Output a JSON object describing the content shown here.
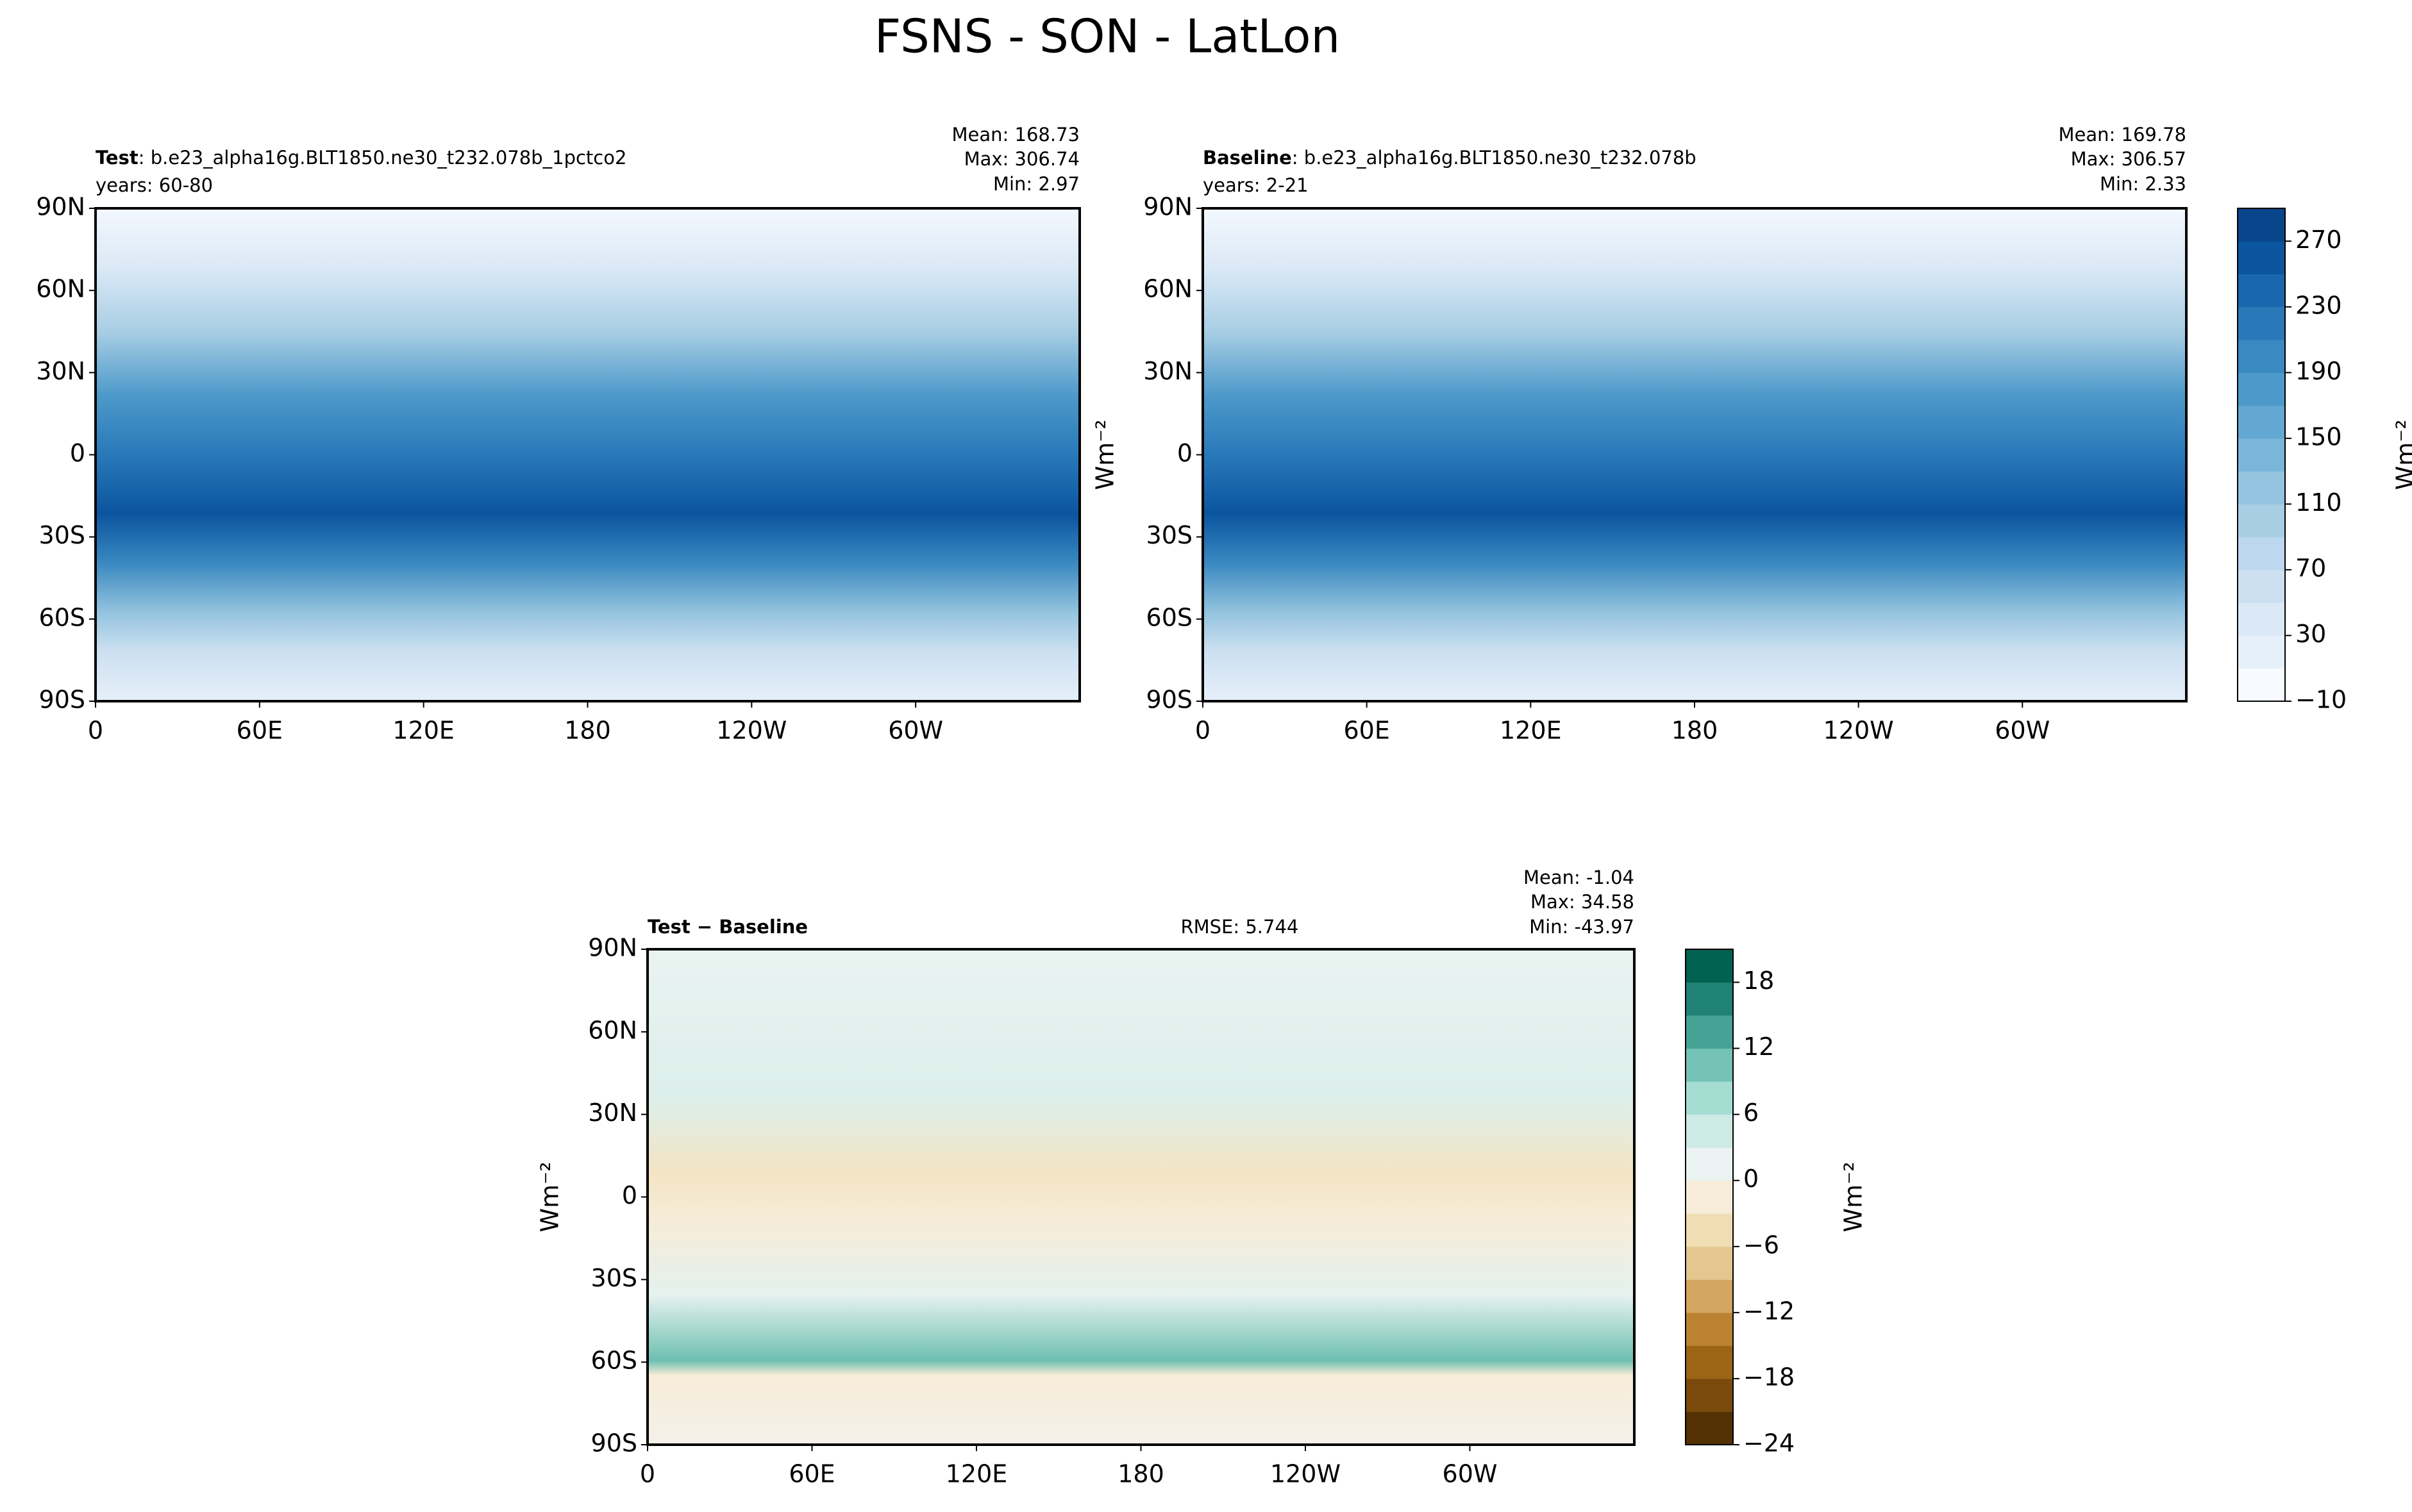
{
  "title": "FSNS - SON - LatLon",
  "chart_data": [
    {
      "type": "map",
      "title_bold": "Test",
      "title": ": b.e23_alpha16g.BLT1850.ne30_t232.078b_1pctco2",
      "subtitle": "years: 60-80",
      "stats": [
        "Mean: 168.73",
        "Max: 306.74",
        "Min:  2.97"
      ],
      "xlim": [
        0,
        360
      ],
      "xticks": [
        0,
        {
          "value": 60,
          "label": "60E"
        },
        {
          "value": 120,
          "label": "120E"
        },
        180,
        {
          "value": 240,
          "label": "120W"
        },
        {
          "value": 300,
          "label": "60W"
        }
      ],
      "ylim": [
        -90,
        90
      ],
      "yticks": [
        {
          "value": -90,
          "label": "90S"
        },
        {
          "value": -60,
          "label": "60S"
        },
        {
          "value": -30,
          "label": "30S"
        },
        0,
        {
          "value": 30,
          "label": "30N"
        },
        {
          "value": 60,
          "label": "60N"
        },
        {
          "value": 90,
          "label": "90N"
        }
      ]
    },
    {
      "type": "map",
      "title_bold": "Baseline",
      "title": ": b.e23_alpha16g.BLT1850.ne30_t232.078b",
      "subtitle": "years: 2-21",
      "stats": [
        "Mean: 169.78",
        "Max: 306.57",
        "Min:  2.33"
      ],
      "ylabel": "Wm⁻²",
      "xlim": [
        0,
        360
      ],
      "xticks": [
        0,
        {
          "value": 60,
          "label": "60E"
        },
        {
          "value": 120,
          "label": "120E"
        },
        180,
        {
          "value": 240,
          "label": "120W"
        },
        {
          "value": 300,
          "label": "60W"
        }
      ],
      "ylim": [
        -90,
        90
      ],
      "yticks": [
        {
          "value": -90,
          "label": "90S"
        },
        {
          "value": -60,
          "label": "60S"
        },
        {
          "value": -30,
          "label": "30S"
        },
        0,
        {
          "value": 30,
          "label": "30N"
        },
        {
          "value": 60,
          "label": "60N"
        },
        {
          "value": 90,
          "label": "90N"
        }
      ],
      "colorbar": {
        "label": "Wm⁻²",
        "lim": [
          -10,
          290
        ],
        "ticks": [
          {
            "value": -10,
            "label": "−10"
          },
          30,
          70,
          110,
          150,
          190,
          230,
          270
        ],
        "colors": [
          "#f7fbff",
          "#e6f0fa",
          "#dbe9f6",
          "#cde0f1",
          "#bdd7ee",
          "#a8cee4",
          "#94c4df",
          "#7ab6d9",
          "#62a8d2",
          "#4d99ca",
          "#3a89c1",
          "#2979b9",
          "#1967ad",
          "#0b559f",
          "#08458a"
        ]
      }
    },
    {
      "type": "map",
      "title_bold": "Test − Baseline",
      "rmse": "RMSE: 5.744",
      "stats": [
        "Mean: -1.04",
        "Max: 34.58",
        "Min: -43.97"
      ],
      "ylabel": "Wm⁻²",
      "xlim": [
        0,
        360
      ],
      "xticks": [
        0,
        {
          "value": 60,
          "label": "60E"
        },
        {
          "value": 120,
          "label": "120E"
        },
        180,
        {
          "value": 240,
          "label": "120W"
        },
        {
          "value": 300,
          "label": "60W"
        }
      ],
      "ylim": [
        -90,
        90
      ],
      "yticks": [
        {
          "value": -90,
          "label": "90S"
        },
        {
          "value": -60,
          "label": "60S"
        },
        {
          "value": -30,
          "label": "30S"
        },
        0,
        {
          "value": 30,
          "label": "30N"
        },
        {
          "value": 60,
          "label": "60N"
        },
        {
          "value": 90,
          "label": "90N"
        }
      ],
      "colorbar": {
        "label": "Wm⁻²",
        "lim": [
          -24,
          21
        ],
        "ticks": [
          {
            "value": -24,
            "label": "−24"
          },
          {
            "value": -18,
            "label": "−18"
          },
          {
            "value": -12,
            "label": "−12"
          },
          {
            "value": -6,
            "label": "−6"
          },
          0,
          6,
          12,
          18
        ],
        "colors": [
          "#543005",
          "#7a4a0c",
          "#9c6415",
          "#bb8331",
          "#d2a660",
          "#e3c78e",
          "#f0ddb3",
          "#f6ecd8",
          "#eaf3f1",
          "#cdeae5",
          "#a6ddd3",
          "#75c3b6",
          "#45a295",
          "#1f8275",
          "#016150"
        ]
      }
    }
  ]
}
